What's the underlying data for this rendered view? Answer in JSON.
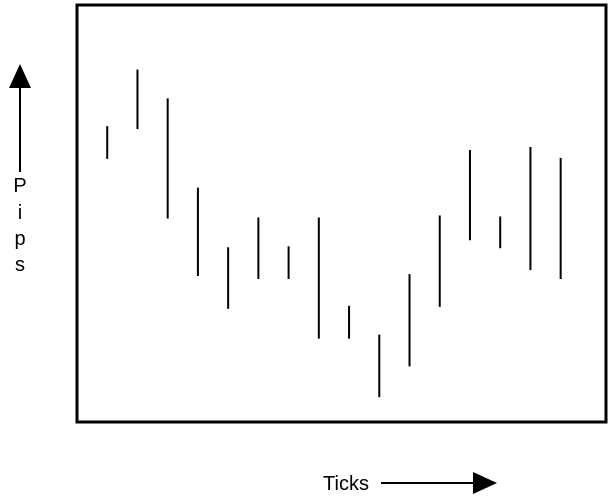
{
  "chart_data": {
    "type": "bar",
    "subtype": "range-bars",
    "title": "",
    "xlabel": "Ticks",
    "ylabel": "Pips",
    "ylabel_letters": [
      "P",
      "i",
      "p",
      "s"
    ],
    "x_axis_arrow": "right",
    "y_axis_arrow": "up",
    "tick_labels_shown": false,
    "grid": false,
    "legend": "none",
    "frame": "full-box",
    "bars": [
      {
        "tick": 1,
        "low": 265,
        "high": 298
      },
      {
        "tick": 2,
        "low": 295,
        "high": 355
      },
      {
        "tick": 3,
        "low": 205,
        "high": 326
      },
      {
        "tick": 4,
        "low": 147,
        "high": 236
      },
      {
        "tick": 5,
        "low": 114,
        "high": 176
      },
      {
        "tick": 6,
        "low": 144,
        "high": 206
      },
      {
        "tick": 7,
        "low": 144,
        "high": 177
      },
      {
        "tick": 8,
        "low": 84,
        "high": 206
      },
      {
        "tick": 9,
        "low": 84,
        "high": 117
      },
      {
        "tick": 10,
        "low": 25,
        "high": 88
      },
      {
        "tick": 11,
        "low": 56,
        "high": 149
      },
      {
        "tick": 12,
        "low": 116,
        "high": 208
      },
      {
        "tick": 13,
        "low": 183,
        "high": 274
      },
      {
        "tick": 14,
        "low": 175,
        "high": 207
      },
      {
        "tick": 15,
        "low": 153,
        "high": 277
      },
      {
        "tick": 16,
        "low": 144,
        "high": 266
      }
    ],
    "xlim": [
      0,
      17.5
    ],
    "ylim": [
      0,
      420
    ],
    "colors": {
      "bar": "#000000",
      "frame": "#000000",
      "text": "#000000",
      "background": "#ffffff"
    }
  }
}
